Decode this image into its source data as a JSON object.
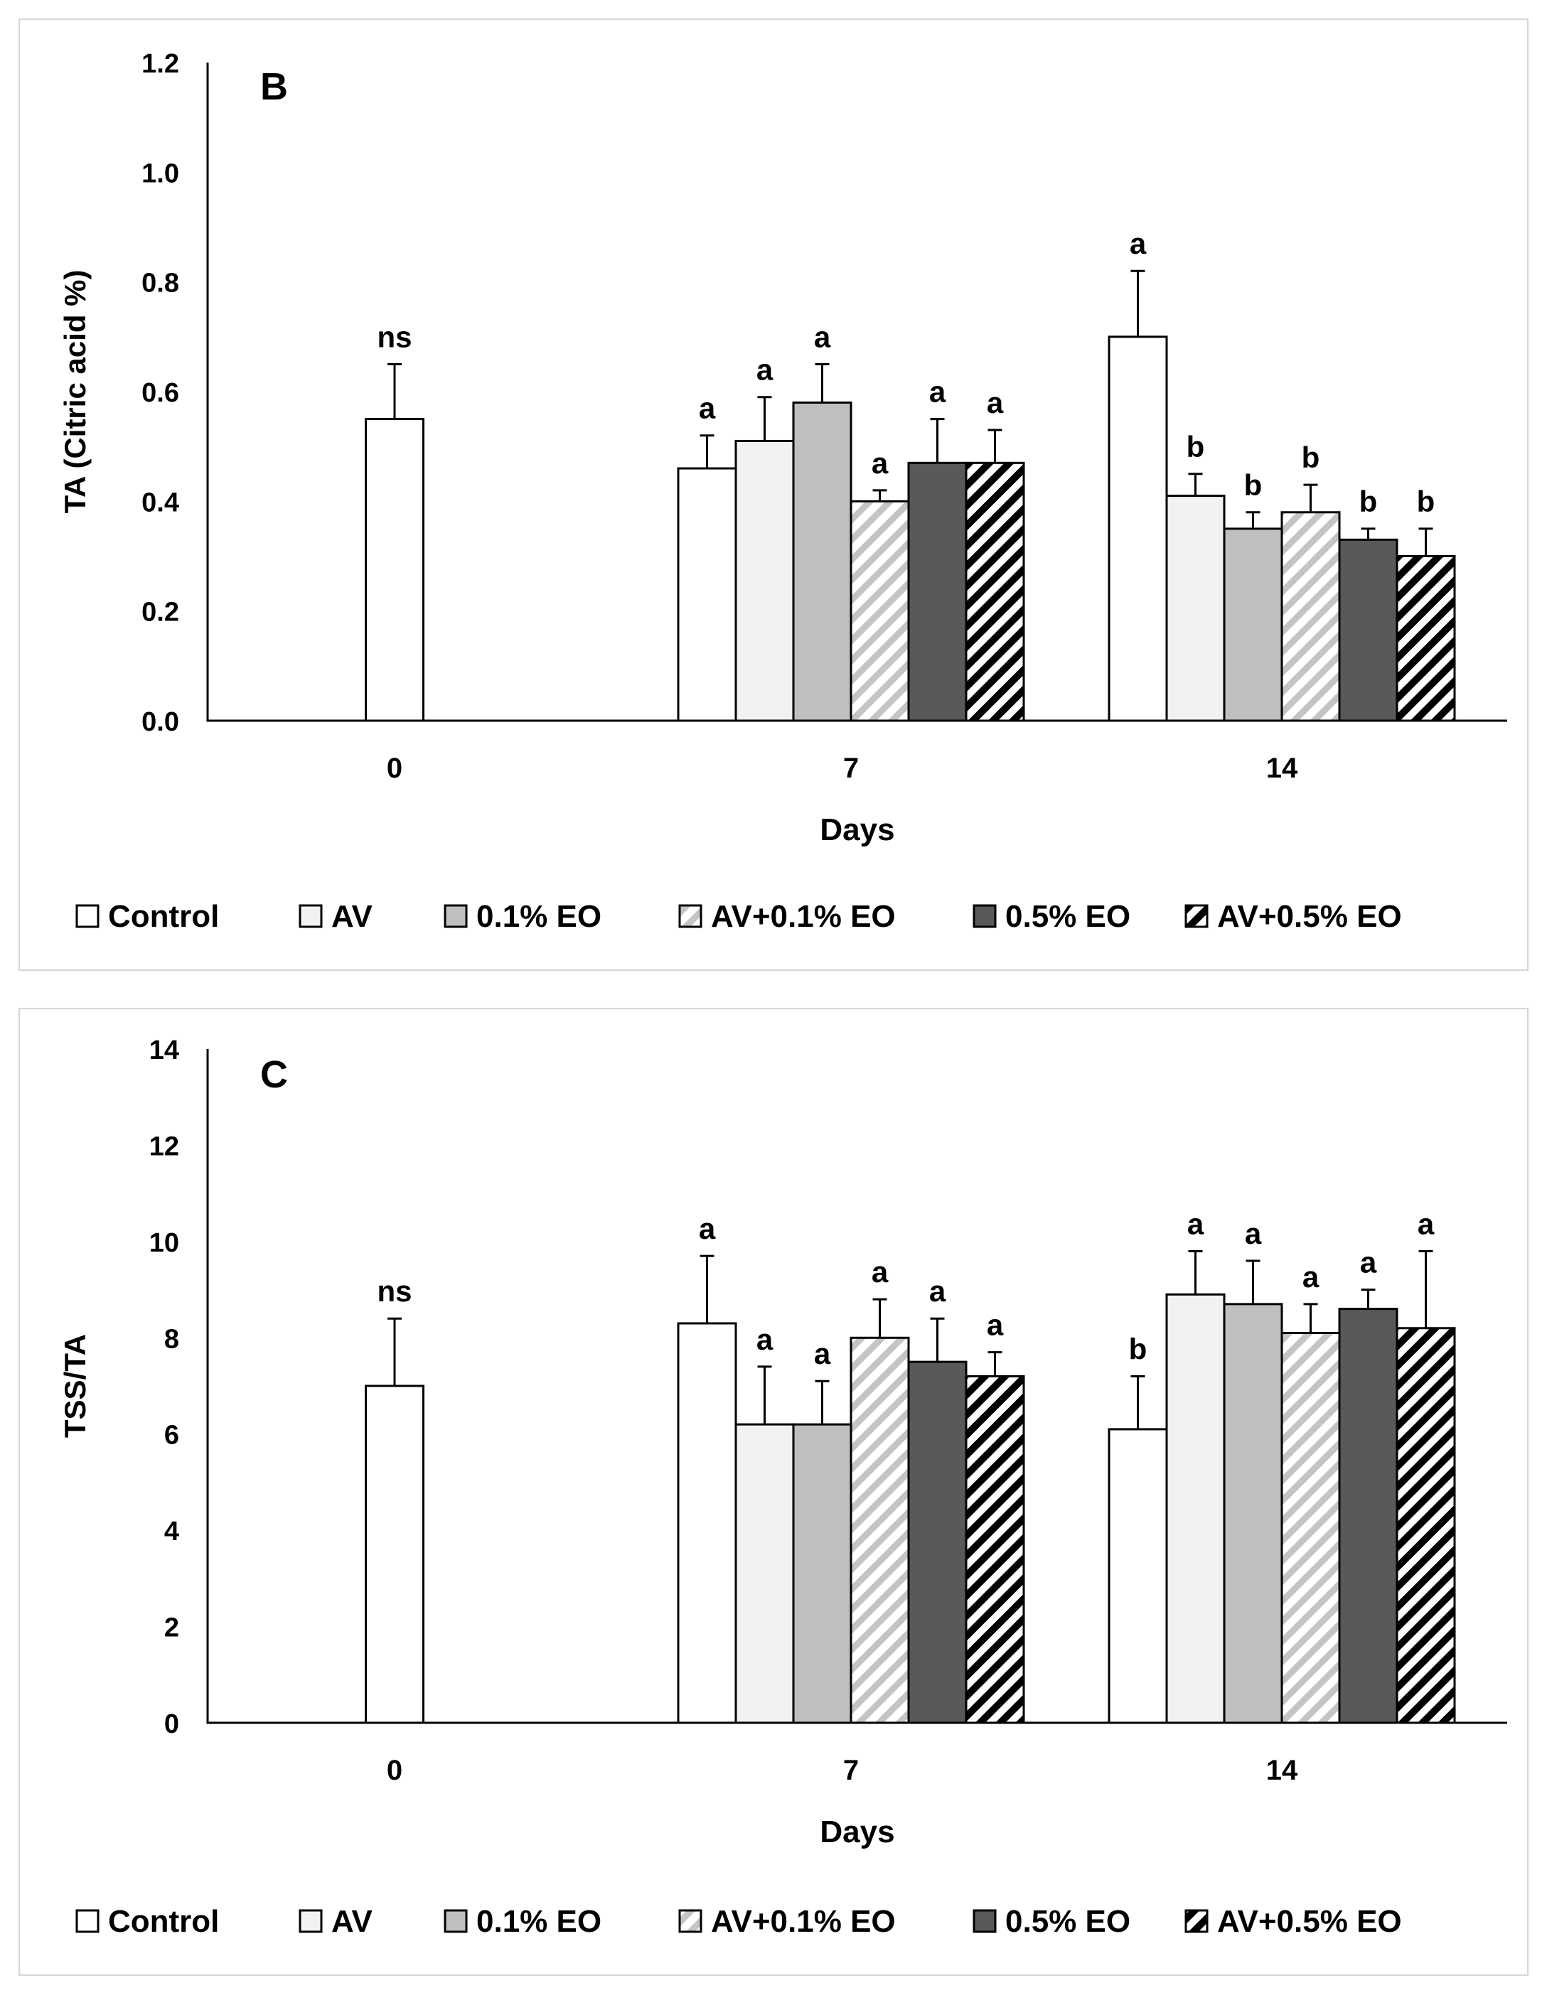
{
  "chart_data": [
    {
      "type": "bar",
      "panel_label": "B",
      "ylabel": "TA (Citric acid %)",
      "xlabel": "Days",
      "categories": [
        "0",
        "7",
        "14"
      ],
      "ylim": [
        0,
        1.2
      ],
      "yticks": [
        "0.0",
        "0.2",
        "0.4",
        "0.6",
        "0.8",
        "1.0",
        "1.2"
      ],
      "grid": false,
      "legend_position": "bottom",
      "series": [
        {
          "name": "Control",
          "values": [
            0.55,
            0.46,
            0.7
          ],
          "errors": [
            0.1,
            0.06,
            0.12
          ],
          "letters": [
            "ns",
            "a",
            "a"
          ]
        },
        {
          "name": "AV",
          "values": [
            null,
            0.51,
            0.41
          ],
          "errors": [
            null,
            0.08,
            0.04
          ],
          "letters": [
            "",
            "a",
            "b"
          ]
        },
        {
          "name": "0.1% EO",
          "values": [
            null,
            0.58,
            0.35
          ],
          "errors": [
            null,
            0.07,
            0.03
          ],
          "letters": [
            "",
            "a",
            "b"
          ]
        },
        {
          "name": "AV+0.1% EO",
          "values": [
            null,
            0.4,
            0.38
          ],
          "errors": [
            null,
            0.02,
            0.05
          ],
          "letters": [
            "",
            "a",
            "b"
          ]
        },
        {
          "name": "0.5% EO",
          "values": [
            null,
            0.47,
            0.33
          ],
          "errors": [
            null,
            0.08,
            0.02
          ],
          "letters": [
            "",
            "a",
            "b"
          ]
        },
        {
          "name": "AV+0.5% EO",
          "values": [
            null,
            0.47,
            0.3
          ],
          "errors": [
            null,
            0.06,
            0.05
          ],
          "letters": [
            "",
            "a",
            "b"
          ]
        }
      ]
    },
    {
      "type": "bar",
      "panel_label": "C",
      "ylabel": "TSS/TA",
      "xlabel": "Days",
      "categories": [
        "0",
        "7",
        "14"
      ],
      "ylim": [
        0,
        14
      ],
      "yticks": [
        "0",
        "2",
        "4",
        "6",
        "8",
        "10",
        "12",
        "14"
      ],
      "grid": false,
      "legend_position": "bottom",
      "series": [
        {
          "name": "Control",
          "values": [
            7.0,
            8.3,
            6.1
          ],
          "errors": [
            1.4,
            1.4,
            1.1
          ],
          "letters": [
            "ns",
            "a",
            "b"
          ]
        },
        {
          "name": "AV",
          "values": [
            null,
            6.2,
            8.9
          ],
          "errors": [
            null,
            1.2,
            0.9
          ],
          "letters": [
            "",
            "a",
            "a"
          ]
        },
        {
          "name": "0.1% EO",
          "values": [
            null,
            6.2,
            8.7
          ],
          "errors": [
            null,
            0.9,
            0.9
          ],
          "letters": [
            "",
            "a",
            "a"
          ]
        },
        {
          "name": "AV+0.1% EO",
          "values": [
            null,
            8.0,
            8.1
          ],
          "errors": [
            null,
            0.8,
            0.6
          ],
          "letters": [
            "",
            "a",
            "a"
          ]
        },
        {
          "name": "0.5% EO",
          "values": [
            null,
            7.5,
            8.6
          ],
          "errors": [
            null,
            0.9,
            0.4
          ],
          "letters": [
            "",
            "a",
            "a"
          ]
        },
        {
          "name": "AV+0.5% EO",
          "values": [
            null,
            7.2,
            8.2
          ],
          "errors": [
            null,
            0.5,
            1.6
          ],
          "letters": [
            "",
            "a",
            "a"
          ]
        }
      ]
    }
  ],
  "colors": {
    "control": "#ffffff",
    "av": "#f2f2f2",
    "eo01": "#bfbfbf",
    "av_eo01": "#d0d0d0",
    "eo05": "#595959",
    "av_eo05": "#000000"
  }
}
